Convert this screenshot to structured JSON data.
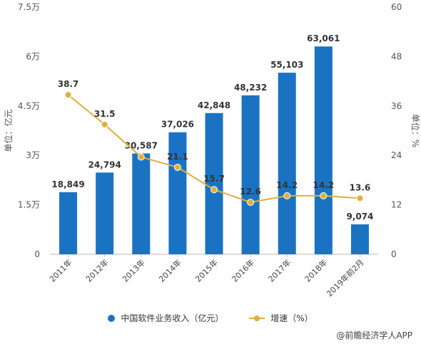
{
  "chart_data": {
    "type": "bar",
    "categories": [
      "2011年",
      "2012年",
      "2013年",
      "2014年",
      "2015年",
      "2016年",
      "2017年",
      "2018年",
      "2019年前2月"
    ],
    "series": [
      {
        "name": "中国软件业务收入（亿元）",
        "type": "bar",
        "axis": "left",
        "values": [
          18849,
          24794,
          30587,
          37026,
          42848,
          48232,
          55103,
          63061,
          9074
        ],
        "value_labels": [
          "18,849",
          "24,794",
          "30,587",
          "37,026",
          "42,848",
          "48,232",
          "55,103",
          "63,061",
          "9,074"
        ],
        "color": "#1a73c2"
      },
      {
        "name": "增速（%）",
        "type": "line",
        "axis": "right",
        "values": [
          38.7,
          31.5,
          23.6,
          21.1,
          15.7,
          12.6,
          14.2,
          14.2,
          13.6
        ],
        "value_labels": [
          "38.7",
          "31.5",
          "",
          "21.1",
          "15.7",
          "12.6",
          "14.2",
          "14.2",
          "13.6"
        ],
        "color": "#e2ae3f"
      }
    ],
    "ylabel": "单位：亿元",
    "y2label": "单位：%",
    "ylim": [
      0,
      75000
    ],
    "y2lim": [
      0,
      60
    ],
    "yticks": [
      "0",
      "1.5万",
      "3万",
      "4.5万",
      "6万",
      "7.5万"
    ],
    "y2ticks": [
      "0",
      "12",
      "24",
      "36",
      "48",
      "60"
    ],
    "grid": false,
    "legend_position": "bottom"
  },
  "credit": "@前瞻经济学人APP"
}
